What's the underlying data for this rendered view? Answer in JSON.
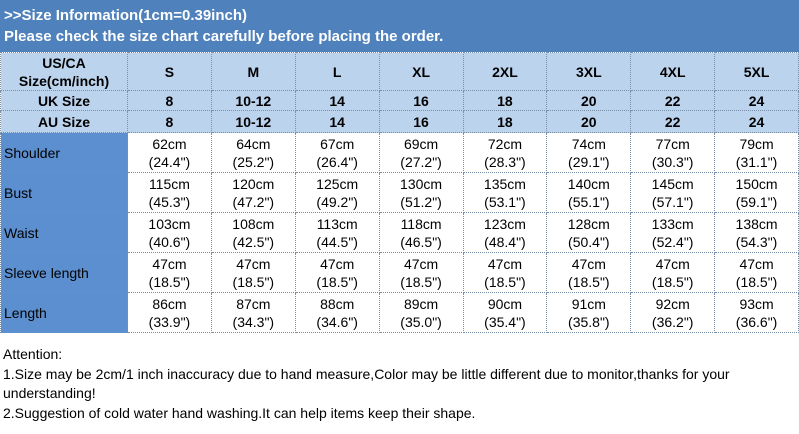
{
  "banner": {
    "line1": ">>Size Information(1cm=0.39inch)",
    "line2": "Please check the size chart carefully before placing the order."
  },
  "header": {
    "label_line1": "US/CA",
    "label_line2": "Size(cm/inch)",
    "sizes": [
      "S",
      "M",
      "L",
      "XL",
      "2XL",
      "3XL",
      "4XL",
      "5XL"
    ]
  },
  "uk": {
    "label": "UK Size",
    "values": [
      "8",
      "10-12",
      "14",
      "16",
      "18",
      "20",
      "22",
      "24"
    ]
  },
  "au": {
    "label": "AU Size",
    "values": [
      "8",
      "10-12",
      "14",
      "16",
      "18",
      "20",
      "22",
      "24"
    ]
  },
  "rows": [
    {
      "label": "Shoulder",
      "cm": [
        "62cm",
        "64cm",
        "67cm",
        "69cm",
        "72cm",
        "74cm",
        "77cm",
        "79cm"
      ],
      "inch": [
        "(24.4\")",
        "(25.2\")",
        "(26.4\")",
        "(27.2\")",
        "(28.3\")",
        "(29.1\")",
        "(30.3\")",
        "(31.1\")"
      ]
    },
    {
      "label": "Bust",
      "cm": [
        "115cm",
        "120cm",
        "125cm",
        "130cm",
        "135cm",
        "140cm",
        "145cm",
        "150cm"
      ],
      "inch": [
        "(45.3\")",
        "(47.2\")",
        "(49.2\")",
        "(51.2\")",
        "(53.1\")",
        "(55.1\")",
        "(57.1\")",
        "(59.1\")"
      ]
    },
    {
      "label": "Waist",
      "cm": [
        "103cm",
        "108cm",
        "113cm",
        "118cm",
        "123cm",
        "128cm",
        "133cm",
        "138cm"
      ],
      "inch": [
        "(40.6\")",
        "(42.5\")",
        "(44.5\")",
        "(46.5\")",
        "(48.4\")",
        "(50.4\")",
        "(52.4\")",
        "(54.3\")"
      ]
    },
    {
      "label": "Sleeve length",
      "cm": [
        "47cm",
        "47cm",
        "47cm",
        "47cm",
        "47cm",
        "47cm",
        "47cm",
        "47cm"
      ],
      "inch": [
        "(18.5\")",
        "(18.5\")",
        "(18.5\")",
        "(18.5\")",
        "(18.5\")",
        "(18.5\")",
        "(18.5\")",
        "(18.5\")"
      ]
    },
    {
      "label": "Length",
      "cm": [
        "86cm",
        "87cm",
        "88cm",
        "89cm",
        "90cm",
        "91cm",
        "92cm",
        "93cm"
      ],
      "inch": [
        "(33.9\")",
        "(34.3\")",
        "(34.6\")",
        "(35.0\")",
        "(35.4\")",
        "(35.8\")",
        "(36.2\")",
        "(36.6\")"
      ]
    }
  ],
  "notes": [
    "Attention:",
    "1.Size may be 2cm/1 inch inaccuracy due to hand measure,Color may be little different due to monitor,thanks for your understanding!",
    "2.Suggestion of cold water hand washing.It can help items keep their shape."
  ],
  "colors": {
    "banner": "#4f81bd",
    "header_rows": "#bcd3ee",
    "label_column": "#5b8fcf"
  }
}
